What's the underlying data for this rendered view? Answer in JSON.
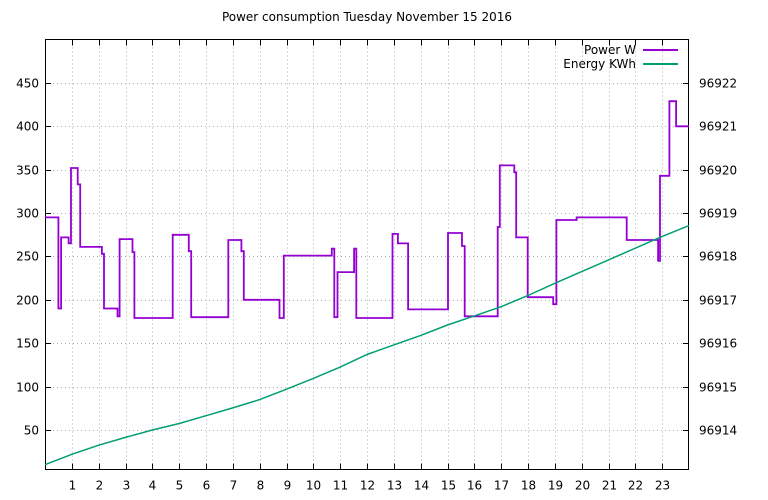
{
  "title": "Power consumption Tuesday November 15 2016",
  "legend": [
    {
      "label": "Power W",
      "color": "#9400d3"
    },
    {
      "label": "Energy KWh",
      "color": "#009e73"
    }
  ],
  "chart_data": {
    "type": "line",
    "title": "Power consumption Tuesday November 15 2016",
    "grid": true,
    "legend_position": "top-right-inside",
    "xlim": [
      0,
      24
    ],
    "x_ticks": [
      "1",
      "2",
      "3",
      "4",
      "5",
      "6",
      "7",
      "8",
      "9",
      "10",
      "11",
      "12",
      "13",
      "14",
      "15",
      "16",
      "17",
      "18",
      "19",
      "20",
      "21",
      "22",
      "23"
    ],
    "y_left": {
      "name": "Power W",
      "lim": [
        4.4,
        500.2
      ],
      "ticks": [
        50,
        100,
        150,
        200,
        250,
        300,
        350,
        400,
        450
      ]
    },
    "y_right": {
      "name": "Energy KWh",
      "lim": [
        96913.09,
        96923.0
      ],
      "ticks": [
        96914,
        96915,
        96916,
        96917,
        96918,
        96919,
        96920,
        96921,
        96922
      ]
    },
    "series": [
      {
        "name": "Power W",
        "type": "step",
        "axis": "left",
        "unit": "W",
        "color": "#9400d3",
        "segments": [
          [
            0.0,
            0.5,
            295
          ],
          [
            0.5,
            0.6,
            190
          ],
          [
            0.6,
            0.88,
            272
          ],
          [
            0.88,
            0.97,
            265
          ],
          [
            0.97,
            1.22,
            352
          ],
          [
            1.22,
            1.31,
            333
          ],
          [
            1.31,
            2.12,
            261
          ],
          [
            2.12,
            2.2,
            253
          ],
          [
            2.2,
            2.7,
            190
          ],
          [
            2.7,
            2.78,
            181
          ],
          [
            2.78,
            3.26,
            270
          ],
          [
            3.26,
            3.33,
            255
          ],
          [
            3.33,
            4.76,
            179
          ],
          [
            4.76,
            5.36,
            275
          ],
          [
            5.36,
            5.45,
            256
          ],
          [
            5.45,
            6.83,
            180
          ],
          [
            6.83,
            7.32,
            269
          ],
          [
            7.32,
            7.41,
            256
          ],
          [
            7.41,
            8.74,
            200
          ],
          [
            8.74,
            8.9,
            179
          ],
          [
            8.9,
            10.69,
            251
          ],
          [
            10.69,
            10.78,
            259
          ],
          [
            10.78,
            10.9,
            180
          ],
          [
            10.9,
            11.52,
            232
          ],
          [
            11.52,
            11.6,
            259
          ],
          [
            11.6,
            12.95,
            179
          ],
          [
            12.95,
            13.15,
            276
          ],
          [
            13.15,
            13.53,
            265
          ],
          [
            13.53,
            15.02,
            189
          ],
          [
            15.02,
            15.54,
            277
          ],
          [
            15.54,
            15.64,
            262
          ],
          [
            15.64,
            16.87,
            181
          ],
          [
            16.87,
            16.95,
            284
          ],
          [
            16.95,
            17.49,
            355
          ],
          [
            17.49,
            17.56,
            347
          ],
          [
            17.56,
            17.99,
            272
          ],
          [
            17.99,
            18.94,
            203
          ],
          [
            18.94,
            19.06,
            195
          ],
          [
            19.06,
            19.81,
            292
          ],
          [
            19.81,
            21.68,
            295
          ],
          [
            21.68,
            22.85,
            269
          ],
          [
            22.85,
            22.92,
            245
          ],
          [
            22.92,
            23.27,
            343
          ],
          [
            23.27,
            23.52,
            429
          ],
          [
            23.52,
            24.0,
            400
          ]
        ]
      },
      {
        "name": "Energy KWh",
        "type": "line",
        "axis": "right",
        "unit": "KWh",
        "color": "#009e73",
        "points": [
          [
            0,
            96913.2
          ],
          [
            1,
            96913.44
          ],
          [
            2,
            96913.65
          ],
          [
            3,
            96913.83
          ],
          [
            4,
            96914.0
          ],
          [
            5,
            96914.15
          ],
          [
            6,
            96914.33
          ],
          [
            7,
            96914.51
          ],
          [
            8,
            96914.7
          ],
          [
            9,
            96914.94
          ],
          [
            10,
            96915.19
          ],
          [
            11,
            96915.45
          ],
          [
            12,
            96915.74
          ],
          [
            13,
            96915.96
          ],
          [
            14,
            96916.18
          ],
          [
            15,
            96916.42
          ],
          [
            16,
            96916.63
          ],
          [
            17,
            96916.84
          ],
          [
            18,
            96917.1
          ],
          [
            19,
            96917.38
          ],
          [
            20,
            96917.65
          ],
          [
            21,
            96917.92
          ],
          [
            22,
            96918.19
          ],
          [
            23,
            96918.46
          ],
          [
            24,
            96918.71
          ]
        ]
      }
    ]
  }
}
